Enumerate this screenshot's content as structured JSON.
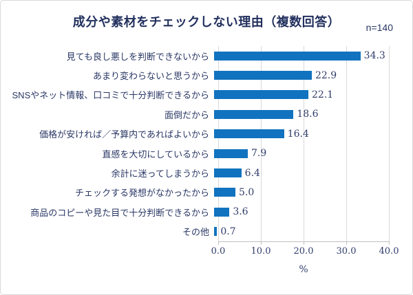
{
  "title": "成分や素材をチェックしない理由（複数回答）",
  "sample_size": "n=140",
  "colors": {
    "bar": "#1173BF",
    "text_navy": "#2A3765",
    "gridline": "#D9D9D9"
  },
  "chart_data": {
    "type": "bar",
    "orientation": "horizontal",
    "title": "成分や素材をチェックしない理由（複数回答）",
    "annotation": "n=140",
    "categories": [
      "見ても良し悪しを判断できないから",
      "あまり変わらないと思うから",
      "SNSやネット情報、口コミで十分判断できるから",
      "面倒だから",
      "価格が安ければ／予算内であればよいから",
      "直感を大切にしているから",
      "余計に迷ってしまうから",
      "チェックする発想がなかったから",
      "商品のコピーや見た目で十分判断できるから",
      "その他"
    ],
    "values": [
      34.3,
      22.9,
      22.1,
      18.6,
      16.4,
      7.9,
      6.4,
      5.0,
      3.6,
      0.7
    ],
    "value_labels": [
      "34.3",
      "22.9",
      "22.1",
      "18.6",
      "16.4",
      "7.9",
      "6.4",
      "5.0",
      "3.6",
      "0.7"
    ],
    "xlabel": "%",
    "x_ticks": [
      "0.0",
      "10.0",
      "20.0",
      "30.0",
      "40.0"
    ],
    "xlim": [
      0,
      40
    ],
    "grid": true,
    "legend": false
  }
}
